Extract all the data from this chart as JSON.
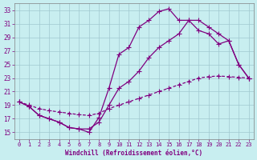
{
  "bg_color": "#c8eef0",
  "line_color": "#800080",
  "grid_color": "#a0c8d0",
  "xlabel": "Windchill (Refroidissement éolien,°C)",
  "tick_color": "#800080",
  "ylim": [
    14,
    34
  ],
  "xlim": [
    -0.5,
    23.5
  ],
  "yticks": [
    15,
    17,
    19,
    21,
    23,
    25,
    27,
    29,
    31,
    33
  ],
  "xticks": [
    0,
    1,
    2,
    3,
    4,
    5,
    6,
    7,
    8,
    9,
    10,
    11,
    12,
    13,
    14,
    15,
    16,
    17,
    18,
    19,
    20,
    21,
    22,
    23
  ],
  "curve1_x": [
    0,
    1,
    2,
    3,
    4,
    5,
    6,
    7,
    8,
    9,
    10,
    11,
    12,
    13,
    14,
    15,
    16,
    17,
    18,
    19,
    20,
    21,
    22,
    23
  ],
  "curve1_y": [
    19.5,
    18.8,
    17.5,
    17.0,
    16.5,
    15.7,
    15.5,
    15.0,
    17.2,
    21.5,
    26.5,
    27.5,
    30.5,
    31.5,
    32.8,
    33.2,
    31.5,
    31.5,
    30.0,
    29.5,
    28.0,
    28.5,
    25.0,
    23.0
  ],
  "curve2_x": [
    0,
    1,
    2,
    3,
    4,
    5,
    6,
    7,
    8,
    9,
    10,
    11,
    12,
    13,
    14,
    15,
    16,
    17,
    18,
    19,
    20,
    21,
    22,
    23
  ],
  "curve2_y": [
    19.5,
    18.8,
    17.5,
    17.0,
    16.5,
    15.7,
    15.5,
    15.5,
    16.5,
    19.0,
    21.5,
    22.5,
    24.0,
    26.0,
    27.5,
    28.5,
    29.5,
    31.5,
    31.5,
    30.5,
    29.5,
    28.5,
    25.0,
    23.0
  ],
  "curve3_x": [
    0,
    1,
    2,
    3,
    4,
    5,
    6,
    7,
    8,
    9,
    10,
    11,
    12,
    13,
    14,
    15,
    16,
    17,
    18,
    19,
    20,
    21,
    22,
    23
  ],
  "curve3_y": [
    19.5,
    19.0,
    18.5,
    18.2,
    18.0,
    17.8,
    17.6,
    17.5,
    17.8,
    18.5,
    19.0,
    19.5,
    20.0,
    20.5,
    21.0,
    21.5,
    22.0,
    22.5,
    23.0,
    23.2,
    23.3,
    23.2,
    23.1,
    23.0
  ],
  "line_width": 0.9,
  "marker": "+",
  "marker_size": 4,
  "marker_edge_width": 0.8
}
